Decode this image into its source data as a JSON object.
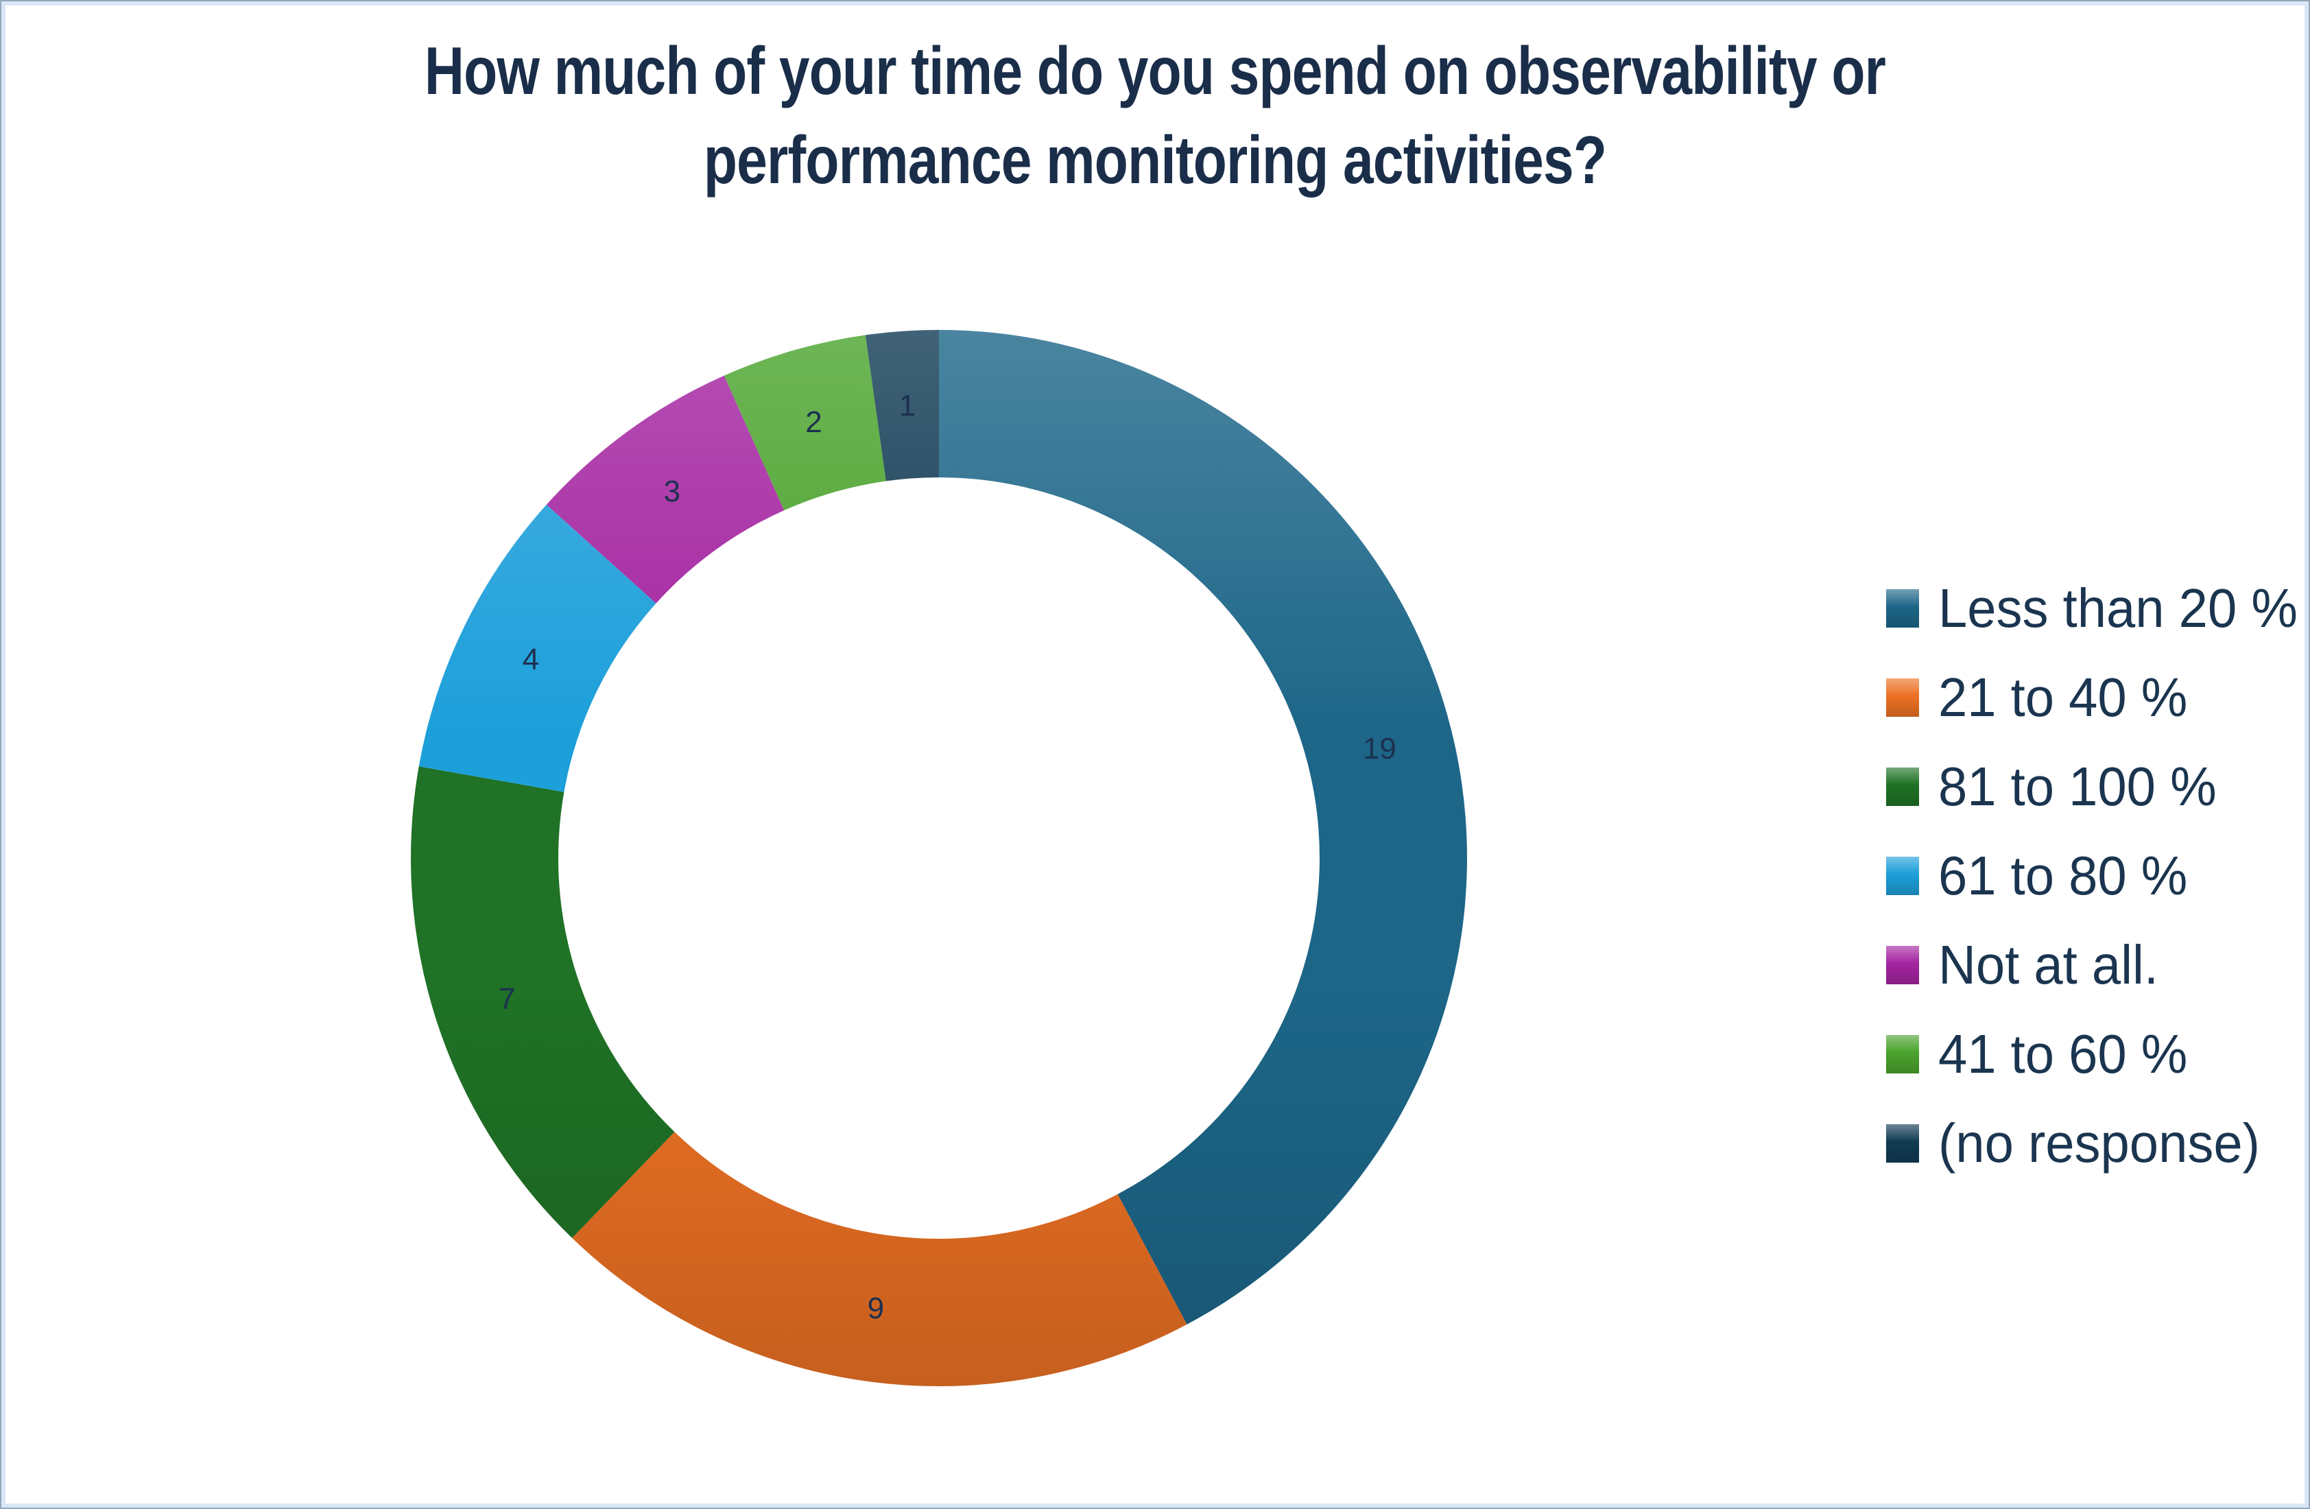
{
  "frame": {
    "outer_border_color": "#93a7ba",
    "inner_border_color": "#d9e7f6",
    "background": "#ffffff"
  },
  "chart_data": {
    "type": "pie",
    "subtype": "donut",
    "title": "How much of your time do you spend on observability or performance monitoring activities?",
    "title_lines": [
      "How much of your time do you spend on observability or",
      "performance monitoring activities?"
    ],
    "title_color": "#1a2e4a",
    "legend_position": "right",
    "direction": "clockwise",
    "start_angle_deg": 0,
    "total": 45,
    "inner_radius_ratio": 0.72,
    "grid": false,
    "segments": [
      {
        "label": "Less than 20 %",
        "value": 19,
        "color": "#1d6688"
      },
      {
        "label": "21 to 40 %",
        "value": 9,
        "color": "#ec7124"
      },
      {
        "label": "81 to 100 %",
        "value": 7,
        "color": "#1f7226"
      },
      {
        "label": "61 to 80 %",
        "value": 4,
        "color": "#1d9fda"
      },
      {
        "label": "Not at all.",
        "value": 3,
        "color": "#a424a0"
      },
      {
        "label": "41 to 60 %",
        "value": 2,
        "color": "#4aa32c"
      },
      {
        "label": "(no response)",
        "value": 1,
        "color": "#113b54"
      }
    ],
    "value_labels": [
      19,
      9,
      7,
      4,
      3,
      2,
      1
    ],
    "value_label_color": "#1c3050",
    "legend_text_color": "#1b3550"
  }
}
